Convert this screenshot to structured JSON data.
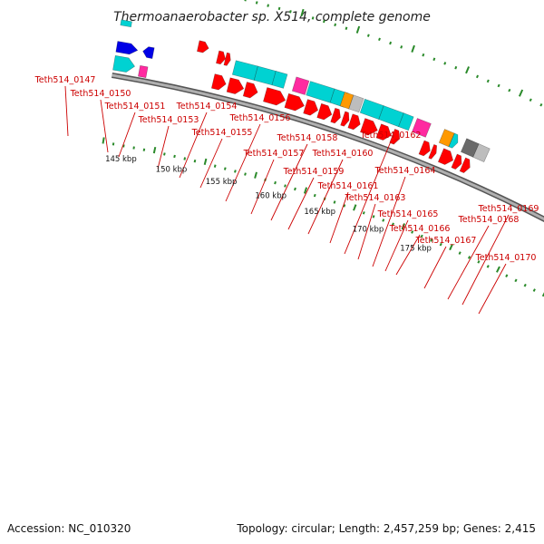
{
  "title": "Thermoanaerobacter sp. X514, complete genome",
  "footer": {
    "accession": "Accession: NC_010320",
    "topology": "Topology: circular; Length: 2,457,259 bp; Genes: 2,415"
  },
  "colors": {
    "backbone": "#8a8a8a",
    "tick": "#2a8a2a",
    "label": "#cc0000",
    "red": "#ff0000",
    "cyan": "#00d2d2",
    "magenta": "#ff2aa0",
    "blue": "#0000e6",
    "orange": "#ff9900",
    "gray": "#bdbdbd",
    "darkgray": "#6a6a6a"
  },
  "scale_labels": [
    "145 kbp",
    "150 kbp",
    "155 kbp",
    "160 kbp",
    "165 kbp",
    "170 kbp",
    "175 kbp"
  ],
  "gene_labels": [
    "Teth514_0147",
    "Teth514_0150",
    "Teth514_0151",
    "Teth514_0153",
    "Teth514_0154",
    "Teth514_0155",
    "Teth514_0156",
    "Teth514_0157",
    "Teth514_0158",
    "Teth514_0159",
    "Teth514_0160",
    "Teth514_0161",
    "Teth514_0162",
    "Teth514_0163",
    "Teth514_0164",
    "Teth514_0165",
    "Teth514_0166",
    "Teth514_0167",
    "Teth514_0168",
    "Teth514_0169",
    "Teth514_0170"
  ]
}
